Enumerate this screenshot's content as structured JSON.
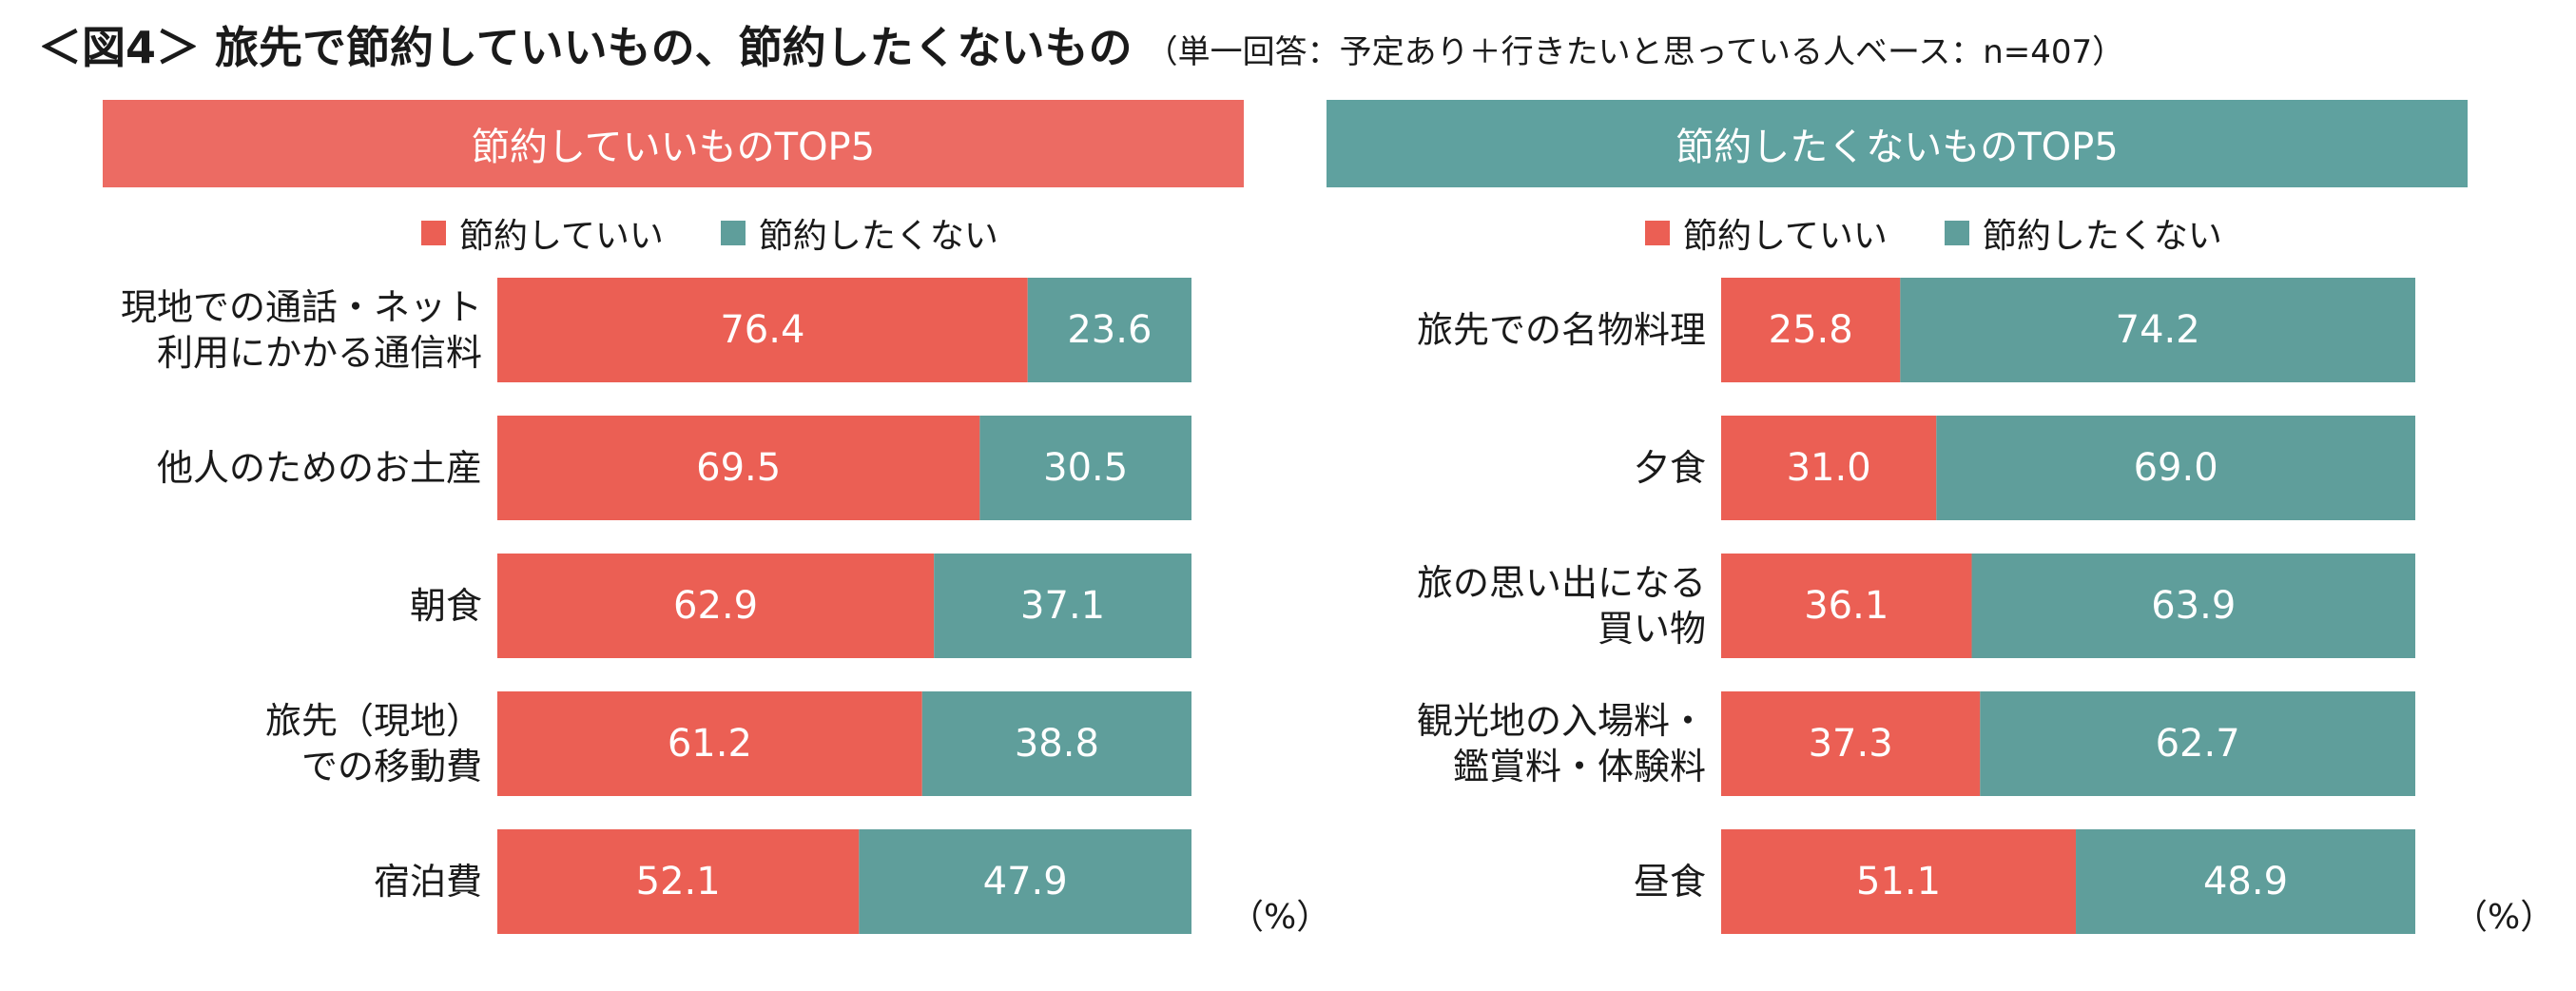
{
  "title": {
    "main": "＜図4＞ 旅先で節約していいもの、節約したくないもの",
    "sub": "（単一回答：予定あり＋行きたいと思っている人ベース：n=407）"
  },
  "colors": {
    "save_ok": "#eb5f54",
    "no_save": "#5f9e9b",
    "banner_left": "#ec6b63",
    "banner_right": "#5fa19f"
  },
  "legend": {
    "save_ok": "節約していい",
    "no_save": "節約したくない"
  },
  "unit_label": "（%）",
  "chart_data": [
    {
      "type": "bar",
      "orientation": "horizontal",
      "stacked": "100%",
      "title": "節約していいものTOP5",
      "categories": [
        [
          "現地での通話・ネット",
          "利用にかかる通信料"
        ],
        [
          "他人のためのお土産"
        ],
        [
          "朝食"
        ],
        [
          "旅先（現地）",
          "での移動費"
        ],
        [
          "宿泊費"
        ]
      ],
      "series": [
        {
          "name": "節約していい",
          "values": [
            76.4,
            69.5,
            62.9,
            61.2,
            52.1
          ]
        },
        {
          "name": "節約したくない",
          "values": [
            23.6,
            30.5,
            37.1,
            38.8,
            47.9
          ]
        }
      ],
      "xlim": [
        0,
        100
      ],
      "unit": "%"
    },
    {
      "type": "bar",
      "orientation": "horizontal",
      "stacked": "100%",
      "title": "節約したくないものTOP5",
      "categories": [
        [
          "旅先での名物料理"
        ],
        [
          "夕食"
        ],
        [
          "旅の思い出になる",
          "買い物"
        ],
        [
          "観光地の入場料・",
          "鑑賞料・体験料"
        ],
        [
          "昼食"
        ]
      ],
      "series": [
        {
          "name": "節約していい",
          "values": [
            25.8,
            31.0,
            36.1,
            37.3,
            51.1
          ]
        },
        {
          "name": "節約したくない",
          "values": [
            74.2,
            69.0,
            63.9,
            62.7,
            48.9
          ]
        }
      ],
      "xlim": [
        0,
        100
      ],
      "unit": "%"
    }
  ]
}
